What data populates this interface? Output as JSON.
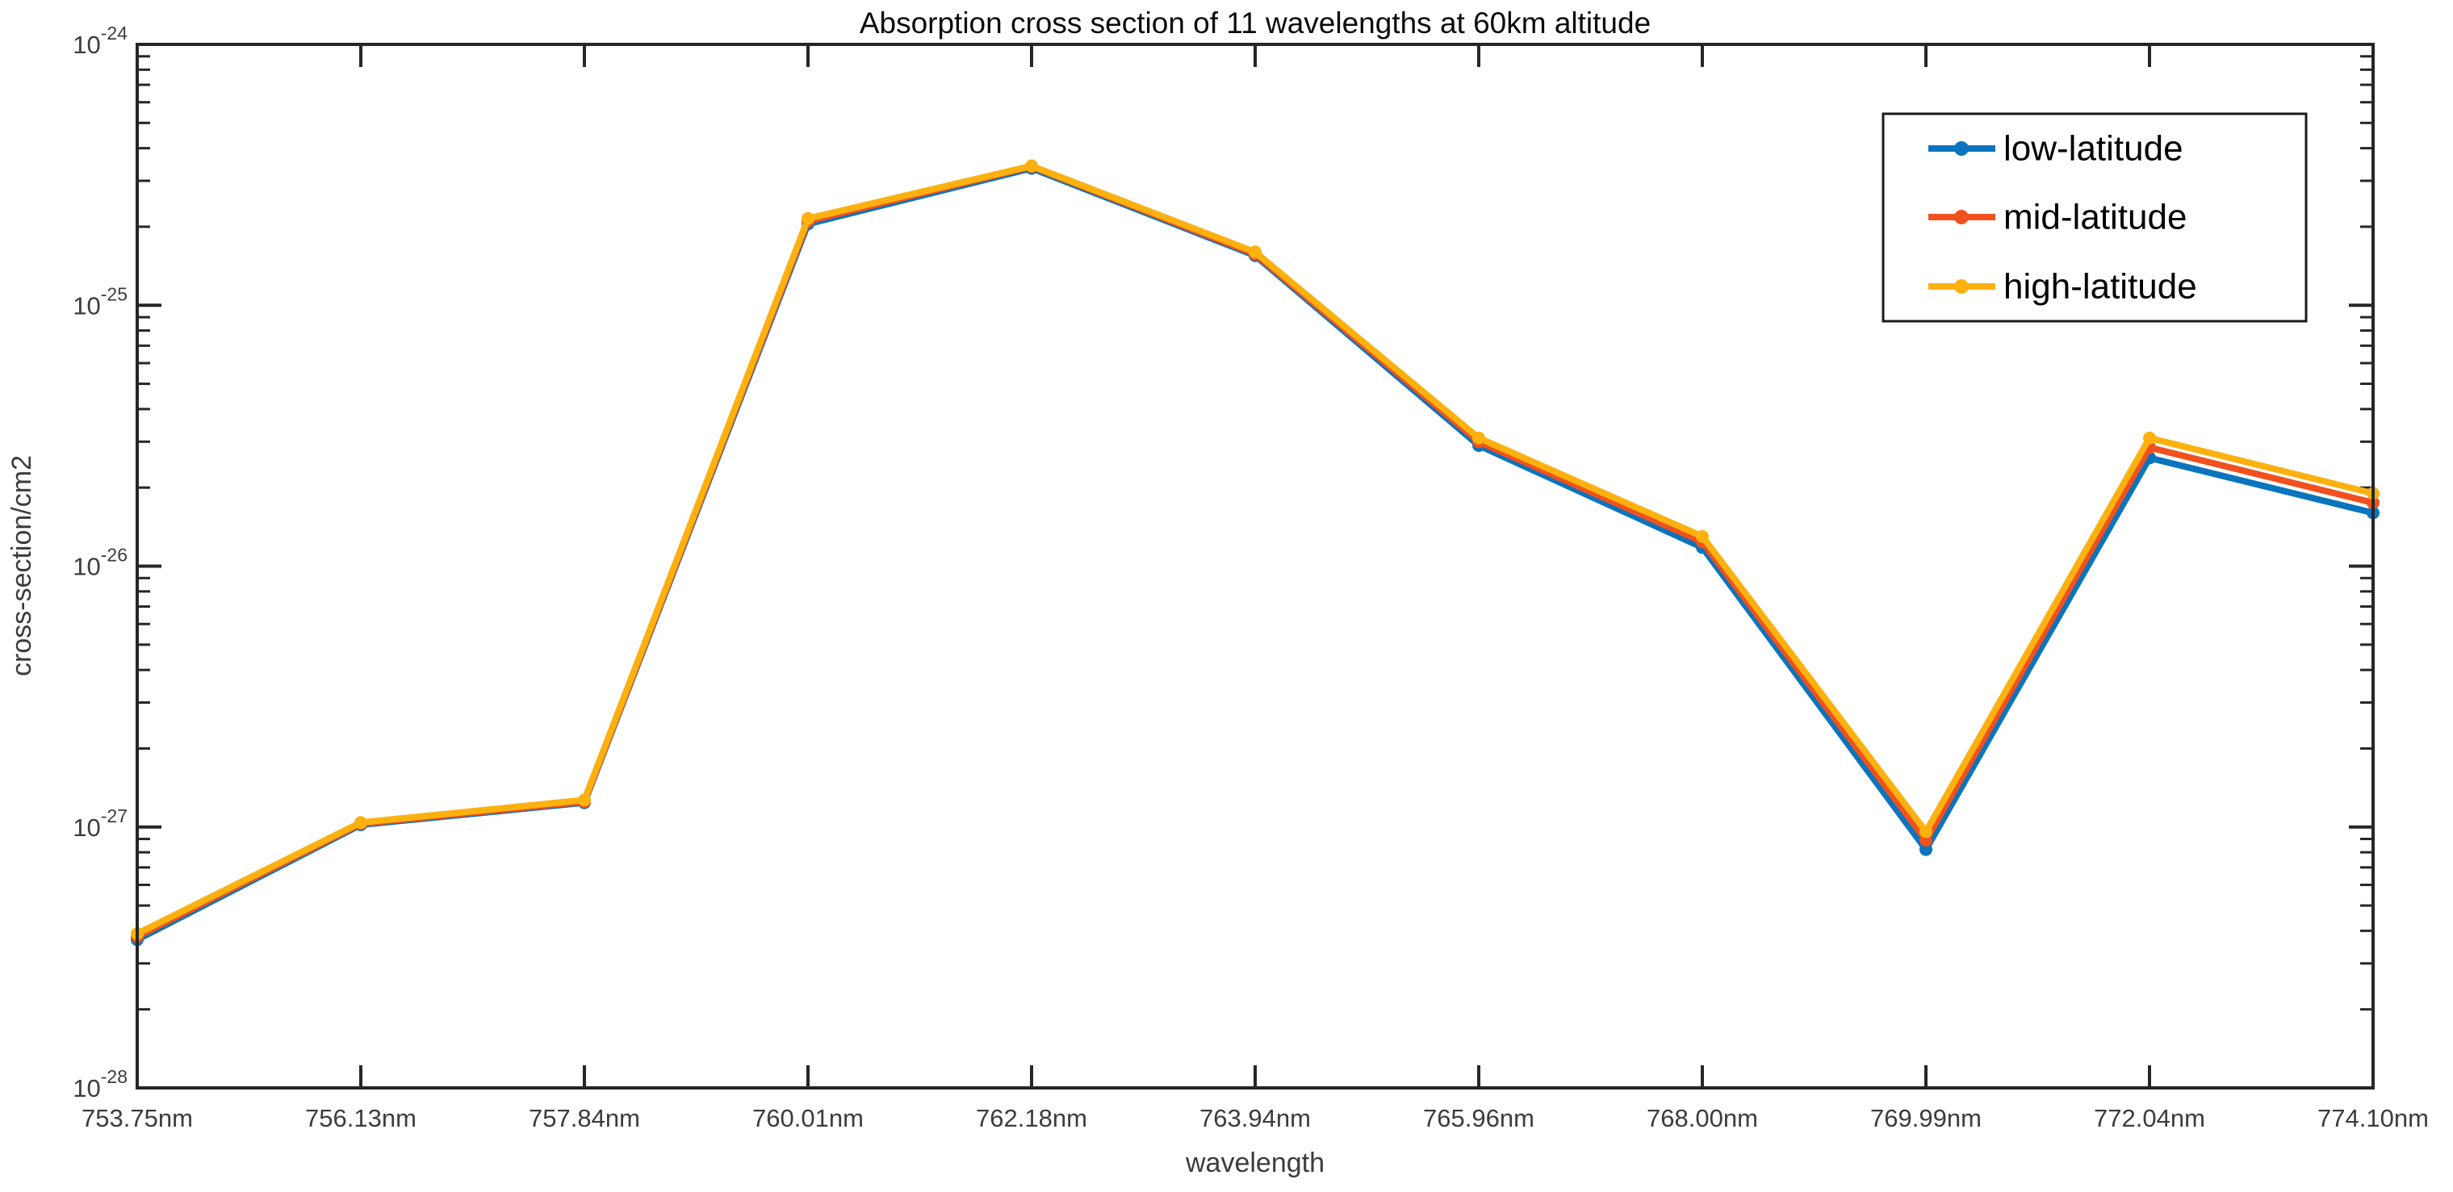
{
  "figure": {
    "background": "#ffffff",
    "axis_color": "#262626",
    "tick_label_color": "#3c3c3c"
  },
  "chart_data": {
    "type": "line",
    "title": "Absorption cross section of 11 wavelengths at 60km altitude",
    "xlabel": "wavelength",
    "ylabel": "cross-section/cm2",
    "x_scale": "categorical",
    "y_scale": "log",
    "ylim": [
      1e-28,
      1e-24
    ],
    "grid": false,
    "box": true,
    "ticks_direction": "in",
    "y_tick_exponents": [
      -24,
      -25,
      -26,
      -27,
      -28
    ],
    "y_minor_tick_mantissas": [
      2,
      3,
      4,
      5,
      6,
      7,
      8,
      9
    ],
    "categories": [
      "753.75nm",
      "756.13nm",
      "757.84nm",
      "760.01nm",
      "762.18nm",
      "763.94nm",
      "765.96nm",
      "768.00nm",
      "769.99nm",
      "772.04nm",
      "774.10nm"
    ],
    "series": [
      {
        "name": "low-latitude",
        "color": "#0B74BE",
        "marker": "circle",
        "values": [
          3.7e-28,
          1.02e-27,
          1.24e-27,
          2.05e-25,
          3.35e-25,
          1.55e-25,
          2.9e-26,
          1.18e-26,
          8.2e-28,
          2.6e-26,
          1.6e-26
        ]
      },
      {
        "name": "mid-latitude",
        "color": "#F0511E",
        "marker": "circle",
        "values": [
          3.8e-28,
          1.03e-27,
          1.25e-27,
          2.1e-25,
          3.4e-25,
          1.57e-25,
          3e-26,
          1.24e-26,
          8.9e-28,
          2.85e-26,
          1.75e-26
        ]
      },
      {
        "name": "high-latitude",
        "color": "#FCB10F",
        "marker": "circle",
        "values": [
          3.9e-28,
          1.04e-27,
          1.27e-27,
          2.15e-25,
          3.42e-25,
          1.6e-25,
          3.1e-26,
          1.3e-26,
          9.6e-28,
          3.1e-26,
          1.9e-26
        ]
      }
    ],
    "legend": {
      "position": "upper right",
      "entries": [
        "low-latitude",
        "mid-latitude",
        "high-latitude"
      ]
    }
  }
}
